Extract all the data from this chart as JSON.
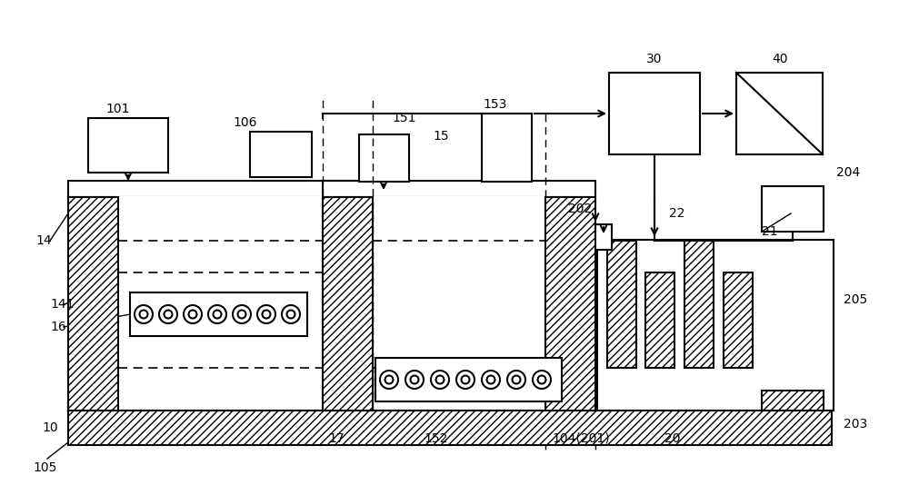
{
  "bg_color": "#ffffff",
  "figsize": [
    10.0,
    5.45
  ],
  "dpi": 100
}
